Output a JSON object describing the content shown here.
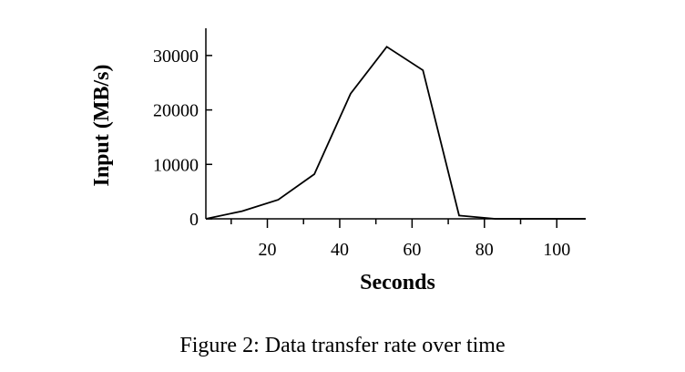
{
  "chart_data": {
    "type": "line",
    "caption": "Figure 2: Data transfer rate over time",
    "xlabel": "Seconds",
    "ylabel": "Input (MB/s)",
    "xlim": [
      3,
      108
    ],
    "ylim": [
      0,
      35000
    ],
    "x_ticks_major": [
      20,
      40,
      60,
      80,
      100
    ],
    "x_ticks_minor": [
      10,
      30,
      50,
      70,
      90
    ],
    "y_ticks": [
      0,
      10000,
      20000,
      30000
    ],
    "grid": false,
    "series": [
      {
        "x": [
          3,
          13,
          23,
          33,
          43,
          53,
          63,
          73,
          83,
          93,
          103,
          108
        ],
        "y": [
          0,
          1400,
          3500,
          8200,
          23000,
          31600,
          27300,
          600,
          0,
          0,
          0,
          0
        ]
      }
    ]
  }
}
